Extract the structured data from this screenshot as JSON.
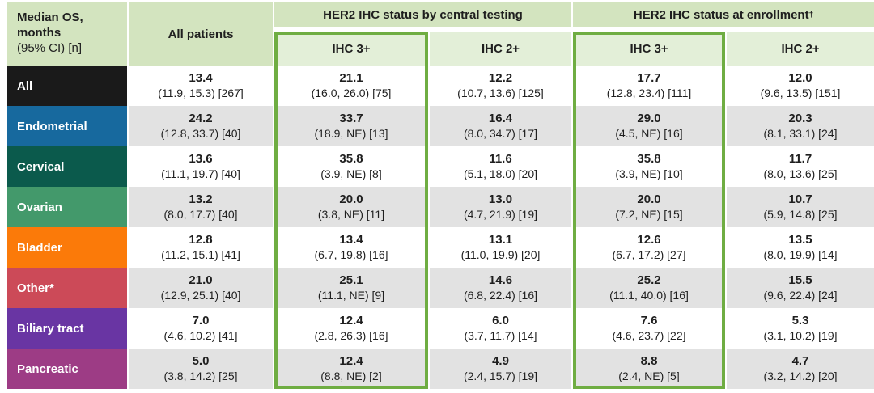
{
  "colors": {
    "header_band": "#d3e4bf",
    "subheader_band": "#e3efd8",
    "highlight_border": "#6fad42",
    "shaded_cell": "#e2e2e2",
    "text": "#1f1f1f"
  },
  "table": {
    "corner": {
      "title_line1": "Median OS,",
      "title_line2": "months",
      "subtitle": "(95% CI) [n]"
    },
    "headers": {
      "all_patients": "All patients",
      "central_group": "HER2 IHC status by central testing",
      "enrollment_group": "HER2 IHC status at enrollment",
      "enrollment_dagger": "†",
      "central_ihc3": "IHC 3+",
      "central_ihc2": "IHC 2+",
      "enrollment_ihc3": "IHC 3+",
      "enrollment_ihc2": "IHC 2+"
    },
    "rows": [
      {
        "id": "all",
        "label": "All",
        "color": "#1a1a1a",
        "shaded": false,
        "cells": [
          {
            "v": "13.4",
            "ci": "(11.9, 15.3) [267]"
          },
          {
            "v": "21.1",
            "ci": "(16.0, 26.0) [75]"
          },
          {
            "v": "12.2",
            "ci": "(10.7, 13.6) [125]"
          },
          {
            "v": "17.7",
            "ci": "(12.8, 23.4) [111]"
          },
          {
            "v": "12.0",
            "ci": "(9.6, 13.5) [151]"
          }
        ]
      },
      {
        "id": "endometrial",
        "label": "Endometrial",
        "color": "#17699e",
        "shaded": true,
        "cells": [
          {
            "v": "24.2",
            "ci": "(12.8, 33.7) [40]"
          },
          {
            "v": "33.7",
            "ci": "(18.9, NE) [13]"
          },
          {
            "v": "16.4",
            "ci": "(8.0, 34.7) [17]"
          },
          {
            "v": "29.0",
            "ci": "(4.5, NE) [16]"
          },
          {
            "v": "20.3",
            "ci": "(8.1, 33.1) [24]"
          }
        ]
      },
      {
        "id": "cervical",
        "label": "Cervical",
        "color": "#0b5a4c",
        "shaded": false,
        "cells": [
          {
            "v": "13.6",
            "ci": "(11.1, 19.7) [40]"
          },
          {
            "v": "35.8",
            "ci": "(3.9, NE) [8]"
          },
          {
            "v": "11.6",
            "ci": "(5.1, 18.0) [20]"
          },
          {
            "v": "35.8",
            "ci": "(3.9, NE) [10]"
          },
          {
            "v": "11.7",
            "ci": "(8.0, 13.6) [25]"
          }
        ]
      },
      {
        "id": "ovarian",
        "label": "Ovarian",
        "color": "#43996b",
        "shaded": true,
        "cells": [
          {
            "v": "13.2",
            "ci": "(8.0, 17.7) [40]"
          },
          {
            "v": "20.0",
            "ci": "(3.8, NE) [11]"
          },
          {
            "v": "13.0",
            "ci": "(4.7, 21.9) [19]"
          },
          {
            "v": "20.0",
            "ci": "(7.2, NE) [15]"
          },
          {
            "v": "10.7",
            "ci": "(5.9, 14.8) [25]"
          }
        ]
      },
      {
        "id": "bladder",
        "label": "Bladder",
        "color": "#fb7a09",
        "shaded": false,
        "cells": [
          {
            "v": "12.8",
            "ci": "(11.2, 15.1) [41]"
          },
          {
            "v": "13.4",
            "ci": "(6.7, 19.8) [16]"
          },
          {
            "v": "13.1",
            "ci": "(11.0, 19.9) [20]"
          },
          {
            "v": "12.6",
            "ci": "(6.7, 17.2) [27]"
          },
          {
            "v": "13.5",
            "ci": "(8.0, 19.9) [14]"
          }
        ]
      },
      {
        "id": "other",
        "label": "Other*",
        "color": "#cc4a58",
        "shaded": true,
        "cells": [
          {
            "v": "21.0",
            "ci": "(12.9, 25.1) [40]"
          },
          {
            "v": "25.1",
            "ci": "(11.1, NE) [9]"
          },
          {
            "v": "14.6",
            "ci": "(6.8, 22.4) [16]"
          },
          {
            "v": "25.2",
            "ci": "(11.1, 40.0) [16]"
          },
          {
            "v": "15.5",
            "ci": "(9.6, 22.4) [24]"
          }
        ]
      },
      {
        "id": "biliary-tract",
        "label": "Biliary tract",
        "color": "#6935a3",
        "shaded": false,
        "cells": [
          {
            "v": "7.0",
            "ci": "(4.6, 10.2) [41]"
          },
          {
            "v": "12.4",
            "ci": "(2.8, 26.3) [16]"
          },
          {
            "v": "6.0",
            "ci": "(3.7, 11.7) [14]"
          },
          {
            "v": "7.6",
            "ci": "(4.6, 23.7) [22]"
          },
          {
            "v": "5.3",
            "ci": "(3.1, 10.2) [19]"
          }
        ]
      },
      {
        "id": "pancreatic",
        "label": "Pancreatic",
        "color": "#9d3c85",
        "shaded": true,
        "cells": [
          {
            "v": "5.0",
            "ci": "(3.8, 14.2) [25]"
          },
          {
            "v": "12.4",
            "ci": "(8.8, NE) [2]"
          },
          {
            "v": "4.9",
            "ci": "(2.4, 15.7) [19]"
          },
          {
            "v": "8.8",
            "ci": "(2.4, NE) [5]"
          },
          {
            "v": "4.7",
            "ci": "(3.2, 14.2) [20]"
          }
        ]
      }
    ]
  },
  "chart_data": {
    "type": "table",
    "title": "Median OS, months (95% CI) [n]",
    "columns": [
      "All patients",
      "HER2 IHC status by central testing — IHC 3+",
      "HER2 IHC status by central testing — IHC 2+",
      "HER2 IHC status at enrollment† — IHC 3+",
      "HER2 IHC status at enrollment† — IHC 2+"
    ],
    "rows": [
      {
        "label": "All",
        "values": [
          "13.4 (11.9, 15.3) [267]",
          "21.1 (16.0, 26.0) [75]",
          "12.2 (10.7, 13.6) [125]",
          "17.7 (12.8, 23.4) [111]",
          "12.0 (9.6, 13.5) [151]"
        ]
      },
      {
        "label": "Endometrial",
        "values": [
          "24.2 (12.8, 33.7) [40]",
          "33.7 (18.9, NE) [13]",
          "16.4 (8.0, 34.7) [17]",
          "29.0 (4.5, NE) [16]",
          "20.3 (8.1, 33.1) [24]"
        ]
      },
      {
        "label": "Cervical",
        "values": [
          "13.6 (11.1, 19.7) [40]",
          "35.8 (3.9, NE) [8]",
          "11.6 (5.1, 18.0) [20]",
          "35.8 (3.9, NE) [10]",
          "11.7 (8.0, 13.6) [25]"
        ]
      },
      {
        "label": "Ovarian",
        "values": [
          "13.2 (8.0, 17.7) [40]",
          "20.0 (3.8, NE) [11]",
          "13.0 (4.7, 21.9) [19]",
          "20.0 (7.2, NE) [15]",
          "10.7 (5.9, 14.8) [25]"
        ]
      },
      {
        "label": "Bladder",
        "values": [
          "12.8 (11.2, 15.1) [41]",
          "13.4 (6.7, 19.8) [16]",
          "13.1 (11.0, 19.9) [20]",
          "12.6 (6.7, 17.2) [27]",
          "13.5 (8.0, 19.9) [14]"
        ]
      },
      {
        "label": "Other*",
        "values": [
          "21.0 (12.9, 25.1) [40]",
          "25.1 (11.1, NE) [9]",
          "14.6 (6.8, 22.4) [16]",
          "25.2 (11.1, 40.0) [16]",
          "15.5 (9.6, 22.4) [24]"
        ]
      },
      {
        "label": "Biliary tract",
        "values": [
          "7.0 (4.6, 10.2) [41]",
          "12.4 (2.8, 26.3) [16]",
          "6.0 (3.7, 11.7) [14]",
          "7.6 (4.6, 23.7) [22]",
          "5.3 (3.1, 10.2) [19]"
        ]
      },
      {
        "label": "Pancreatic",
        "values": [
          "5.0 (3.8, 14.2) [25]",
          "12.4 (8.8, NE) [2]",
          "4.9 (2.4, 15.7) [19]",
          "8.8 (2.4, NE) [5]",
          "4.7 (3.2, 14.2) [20]"
        ]
      }
    ],
    "layout_hints": {
      "highlighted_columns": [
        "HER2 IHC status by central testing — IHC 3+",
        "HER2 IHC status at enrollment† — IHC 3+"
      ],
      "highlight_border_color": "#6fad42",
      "shaded_rows": [
        "Endometrial",
        "Ovarian",
        "Other*",
        "Pancreatic"
      ]
    }
  }
}
